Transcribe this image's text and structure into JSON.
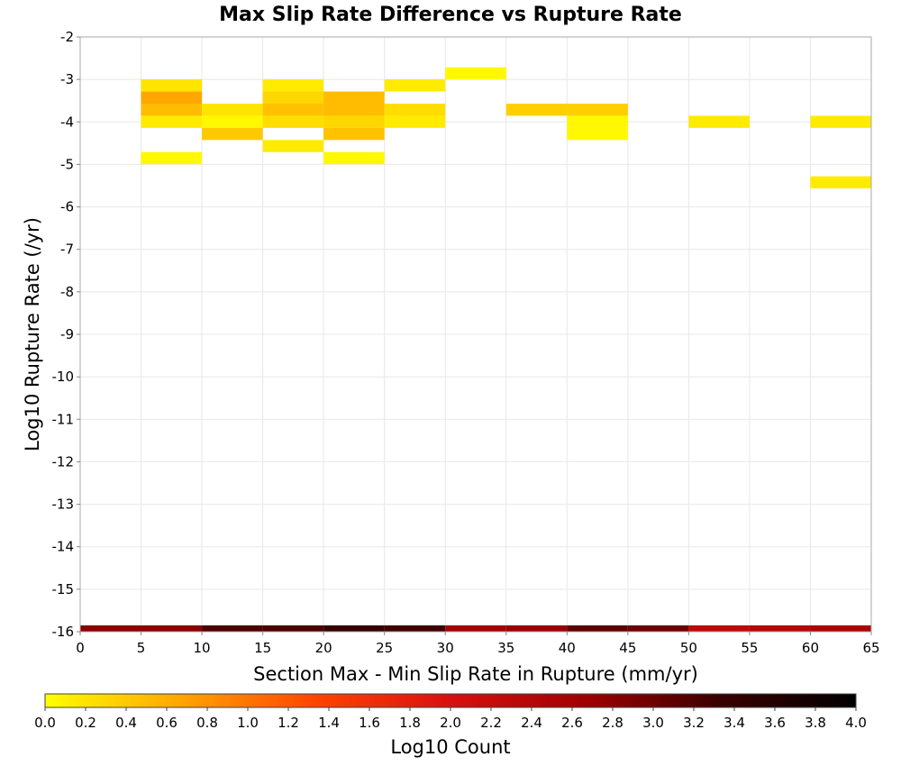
{
  "chart_data": {
    "type": "heatmap",
    "title": "Max Slip Rate Difference vs Rupture Rate",
    "xlabel": "Section Max - Min Slip Rate in Rupture (mm/yr)",
    "ylabel": "Log10 Rupture Rate (/yr)",
    "xlim": [
      0,
      65
    ],
    "ylim": [
      -16,
      -2
    ],
    "x_ticks": [
      "0",
      "5",
      "10",
      "15",
      "20",
      "25",
      "30",
      "35",
      "40",
      "45",
      "50",
      "55",
      "60",
      "65"
    ],
    "y_ticks": [
      "-2",
      "-3",
      "-4",
      "-5",
      "-6",
      "-7",
      "-8",
      "-9",
      "-10",
      "-11",
      "-12",
      "-13",
      "-14",
      "-15",
      "-16"
    ],
    "grid": true,
    "x_bin_width": 5,
    "y_bin_height": 0.285,
    "cells": [
      {
        "x": [
          5,
          10
        ],
        "y": [
          -3.285,
          -3.0
        ],
        "log10_count": 0.2
      },
      {
        "x": [
          5,
          10
        ],
        "y": [
          -3.57,
          -3.285
        ],
        "log10_count": 0.65
      },
      {
        "x": [
          5,
          10
        ],
        "y": [
          -3.855,
          -3.57
        ],
        "log10_count": 0.5
      },
      {
        "x": [
          5,
          10
        ],
        "y": [
          -4.14,
          -3.855
        ],
        "log10_count": 0.15
      },
      {
        "x": [
          5,
          10
        ],
        "y": [
          -4.995,
          -4.71
        ],
        "log10_count": 0.05
      },
      {
        "x": [
          10,
          15
        ],
        "y": [
          -3.855,
          -3.57
        ],
        "log10_count": 0.2
      },
      {
        "x": [
          10,
          15
        ],
        "y": [
          -4.14,
          -3.855
        ],
        "log10_count": 0.05
      },
      {
        "x": [
          10,
          15
        ],
        "y": [
          -4.425,
          -4.14
        ],
        "log10_count": 0.4
      },
      {
        "x": [
          15,
          20
        ],
        "y": [
          -3.285,
          -3.0
        ],
        "log10_count": 0.15
      },
      {
        "x": [
          15,
          20
        ],
        "y": [
          -3.57,
          -3.285
        ],
        "log10_count": 0.3
      },
      {
        "x": [
          15,
          20
        ],
        "y": [
          -3.855,
          -3.57
        ],
        "log10_count": 0.45
      },
      {
        "x": [
          15,
          20
        ],
        "y": [
          -4.14,
          -3.855
        ],
        "log10_count": 0.25
      },
      {
        "x": [
          15,
          20
        ],
        "y": [
          -4.71,
          -4.425
        ],
        "log10_count": 0.15
      },
      {
        "x": [
          20,
          25
        ],
        "y": [
          -3.57,
          -3.285
        ],
        "log10_count": 0.5
      },
      {
        "x": [
          20,
          25
        ],
        "y": [
          -3.855,
          -3.57
        ],
        "log10_count": 0.5
      },
      {
        "x": [
          20,
          25
        ],
        "y": [
          -4.14,
          -3.855
        ],
        "log10_count": 0.3
      },
      {
        "x": [
          20,
          25
        ],
        "y": [
          -4.425,
          -4.14
        ],
        "log10_count": 0.45
      },
      {
        "x": [
          20,
          25
        ],
        "y": [
          -4.995,
          -4.71
        ],
        "log10_count": 0.05
      },
      {
        "x": [
          25,
          30
        ],
        "y": [
          -3.285,
          -3.0
        ],
        "log10_count": 0.15
      },
      {
        "x": [
          25,
          30
        ],
        "y": [
          -3.855,
          -3.57
        ],
        "log10_count": 0.25
      },
      {
        "x": [
          25,
          30
        ],
        "y": [
          -4.14,
          -3.855
        ],
        "log10_count": 0.15
      },
      {
        "x": [
          30,
          35
        ],
        "y": [
          -3.0,
          -2.715
        ],
        "log10_count": 0.05
      },
      {
        "x": [
          35,
          40
        ],
        "y": [
          -3.855,
          -3.57
        ],
        "log10_count": 0.35
      },
      {
        "x": [
          40,
          45
        ],
        "y": [
          -3.855,
          -3.57
        ],
        "log10_count": 0.35
      },
      {
        "x": [
          40,
          45
        ],
        "y": [
          -4.14,
          -3.855
        ],
        "log10_count": 0.05
      },
      {
        "x": [
          40,
          45
        ],
        "y": [
          -4.425,
          -4.14
        ],
        "log10_count": 0.05
      },
      {
        "x": [
          50,
          55
        ],
        "y": [
          -4.14,
          -3.855
        ],
        "log10_count": 0.15
      },
      {
        "x": [
          60,
          65
        ],
        "y": [
          -4.14,
          -3.855
        ],
        "log10_count": 0.15
      },
      {
        "x": [
          60,
          65
        ],
        "y": [
          -5.565,
          -5.28
        ],
        "log10_count": 0.15
      },
      {
        "x": [
          0,
          5
        ],
        "y": [
          -16.0,
          -15.85
        ],
        "log10_count": 2.8
      },
      {
        "x": [
          5,
          10
        ],
        "y": [
          -16.0,
          -15.85
        ],
        "log10_count": 2.8
      },
      {
        "x": [
          10,
          15
        ],
        "y": [
          -16.0,
          -15.85
        ],
        "log10_count": 3.2
      },
      {
        "x": [
          15,
          20
        ],
        "y": [
          -16.0,
          -15.85
        ],
        "log10_count": 3.2
      },
      {
        "x": [
          20,
          25
        ],
        "y": [
          -16.0,
          -15.85
        ],
        "log10_count": 3.4
      },
      {
        "x": [
          25,
          30
        ],
        "y": [
          -16.0,
          -15.85
        ],
        "log10_count": 3.3
      },
      {
        "x": [
          30,
          35
        ],
        "y": [
          -16.0,
          -15.85
        ],
        "log10_count": 2.6
      },
      {
        "x": [
          35,
          40
        ],
        "y": [
          -16.0,
          -15.85
        ],
        "log10_count": 2.7
      },
      {
        "x": [
          40,
          45
        ],
        "y": [
          -16.0,
          -15.85
        ],
        "log10_count": 3.1
      },
      {
        "x": [
          45,
          50
        ],
        "y": [
          -16.0,
          -15.85
        ],
        "log10_count": 3.0
      },
      {
        "x": [
          50,
          55
        ],
        "y": [
          -16.0,
          -15.85
        ],
        "log10_count": 2.3
      },
      {
        "x": [
          55,
          60
        ],
        "y": [
          -16.0,
          -15.85
        ],
        "log10_count": 2.4
      },
      {
        "x": [
          60,
          65
        ],
        "y": [
          -16.0,
          -15.85
        ],
        "log10_count": 2.5
      }
    ],
    "colorbar": {
      "label": "Log10 Count",
      "min": 0.0,
      "max": 4.0,
      "ticks": [
        "0.0",
        "0.2",
        "0.4",
        "0.6",
        "0.8",
        "1.0",
        "1.2",
        "1.4",
        "1.6",
        "1.8",
        "2.0",
        "2.2",
        "2.4",
        "2.6",
        "2.8",
        "3.0",
        "3.2",
        "3.4",
        "3.6",
        "3.8",
        "4.0"
      ],
      "colors": [
        "#ffff00",
        "#ffa500",
        "#ff4400",
        "#d81010",
        "#a00000",
        "#3a0000",
        "#000000"
      ]
    }
  }
}
